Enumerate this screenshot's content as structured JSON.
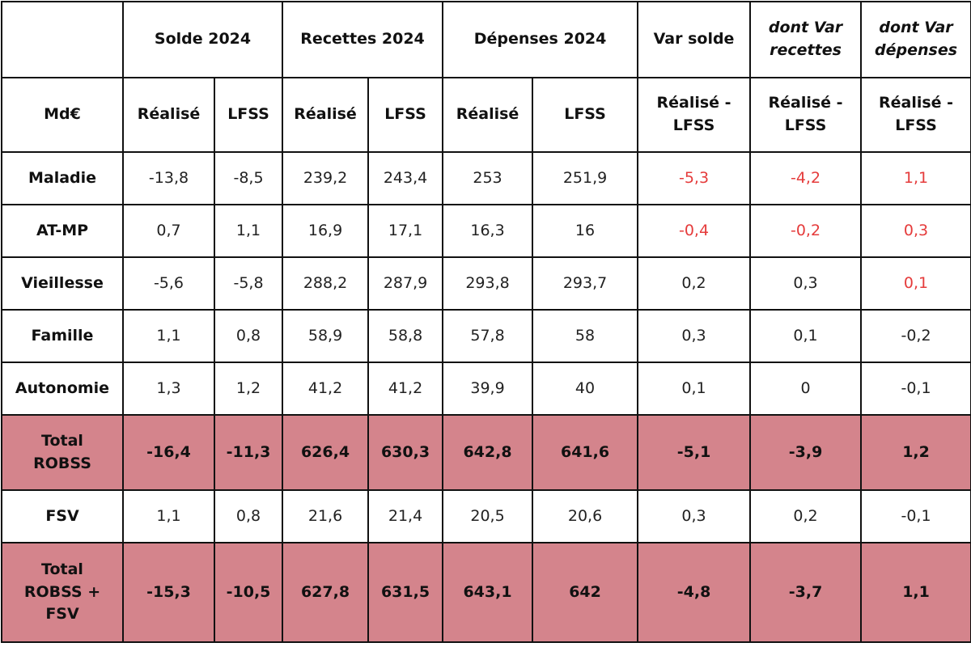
{
  "header": {
    "groups": [
      "Solde 2024",
      "Recettes 2024",
      "Dépenses 2024",
      "Var solde"
    ],
    "italic_groups": [
      [
        "dont Var",
        "recettes"
      ],
      [
        "dont Var",
        "dépenses"
      ]
    ],
    "unit": "Md€",
    "sub": [
      "Réalisé",
      "LFSS",
      "Réalisé",
      "LFSS",
      "Réalisé",
      "LFSS"
    ],
    "diff": [
      "Réalisé -",
      "LFSS"
    ]
  },
  "colors": {
    "total_bg": "#d4848c",
    "negative_var": "#e53b3b",
    "border": "#111111"
  },
  "rows": [
    {
      "label": [
        "Maladie"
      ],
      "values": [
        "-13,8",
        "-8,5",
        "239,2",
        "243,4",
        "253",
        "251,9",
        "-5,3",
        "-4,2",
        "1,1"
      ],
      "red": [
        6,
        7,
        8
      ],
      "total": false
    },
    {
      "label": [
        "AT-MP"
      ],
      "values": [
        "0,7",
        "1,1",
        "16,9",
        "17,1",
        "16,3",
        "16",
        "-0,4",
        "-0,2",
        "0,3"
      ],
      "red": [
        6,
        7,
        8
      ],
      "total": false
    },
    {
      "label": [
        "Vieillesse"
      ],
      "values": [
        "-5,6",
        "-5,8",
        "288,2",
        "287,9",
        "293,8",
        "293,7",
        "0,2",
        "0,3",
        "0,1"
      ],
      "red": [
        8
      ],
      "total": false
    },
    {
      "label": [
        "Famille"
      ],
      "values": [
        "1,1",
        "0,8",
        "58,9",
        "58,8",
        "57,8",
        "58",
        "0,3",
        "0,1",
        "-0,2"
      ],
      "red": [],
      "total": false
    },
    {
      "label": [
        "Autonomie"
      ],
      "values": [
        "1,3",
        "1,2",
        "41,2",
        "41,2",
        "39,9",
        "40",
        "0,1",
        "0",
        "-0,1"
      ],
      "red": [],
      "total": false
    },
    {
      "label": [
        "Total",
        "ROBSS"
      ],
      "values": [
        "-16,4",
        "-11,3",
        "626,4",
        "630,3",
        "642,8",
        "641,6",
        "-5,1",
        "-3,9",
        "1,2"
      ],
      "red": [],
      "total": true
    },
    {
      "label": [
        "FSV"
      ],
      "values": [
        "1,1",
        "0,8",
        "21,6",
        "21,4",
        "20,5",
        "20,6",
        "0,3",
        "0,2",
        "-0,1"
      ],
      "red": [],
      "total": false
    },
    {
      "label": [
        "Total",
        "ROBSS +",
        "FSV"
      ],
      "values": [
        "-15,3",
        "-10,5",
        "627,8",
        "631,5",
        "643,1",
        "642",
        "-4,8",
        "-3,7",
        "1,1"
      ],
      "red": [],
      "total": true
    }
  ]
}
